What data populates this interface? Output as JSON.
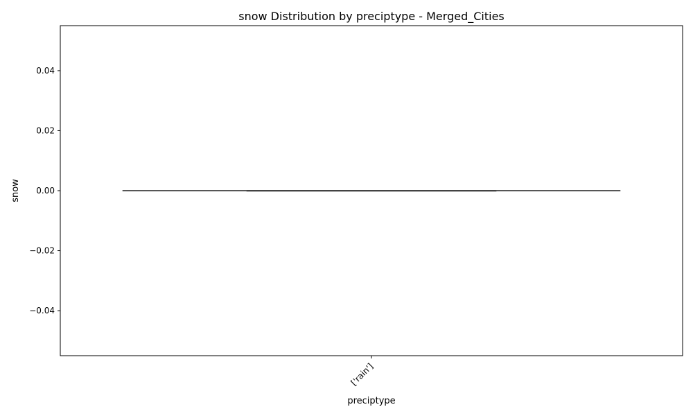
{
  "chart_data": {
    "type": "box",
    "title": "snow Distribution by preciptype - Merged_Cities",
    "xlabel": "preciptype",
    "ylabel": "snow",
    "categories": [
      "['rain']"
    ],
    "boxes": [
      {
        "category": "['rain']",
        "min": 0.0,
        "q1": 0.0,
        "median": 0.0,
        "q3": 0.0,
        "max": 0.0
      }
    ],
    "ylim": [
      -0.055,
      0.055
    ],
    "yticks": [
      -0.04,
      -0.02,
      0.0,
      0.02,
      0.04
    ],
    "ytick_labels": [
      "−0.04",
      "−0.02",
      "0.00",
      "0.02",
      "0.04"
    ],
    "grid": false,
    "colors": {
      "box_line": "#3f3f3f",
      "axes": "#000000"
    }
  }
}
